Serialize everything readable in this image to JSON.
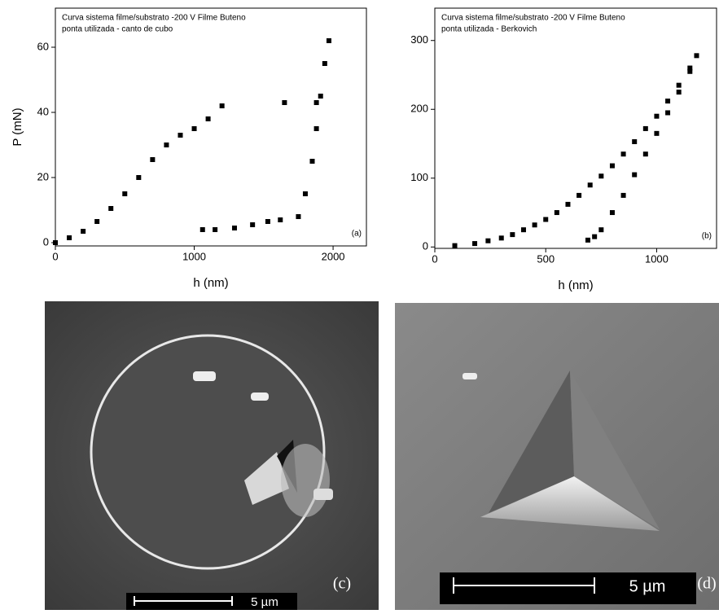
{
  "chart_data": [
    {
      "type": "scatter",
      "title": "Curva sistema filme/substrato -200 V Filme Buteno",
      "subtitle": "ponta utilizada - canto de cubo",
      "annotation": "(a)",
      "x_label": "h (nm)",
      "y_label": "P (mN)",
      "xlim": [
        0,
        2240
      ],
      "ylim": [
        -1,
        72
      ],
      "xticks": [
        0,
        1000,
        2000
      ],
      "yticks": [
        0,
        20,
        40,
        60
      ],
      "series": [
        {
          "color": "#000000",
          "x": [
            0,
            100,
            200,
            300,
            400,
            500,
            600,
            700,
            800,
            900,
            1000,
            1100,
            1200,
            1750,
            1800,
            1850,
            1880,
            1910,
            1940,
            1970,
            1060,
            1150,
            1290,
            1420,
            1530,
            1620,
            1650,
            1880
          ],
          "values": [
            0,
            1.5,
            3.5,
            6.5,
            10.5,
            15,
            20,
            25.5,
            30,
            33,
            35,
            38,
            42,
            8,
            15,
            25,
            35,
            45,
            55,
            62,
            4,
            4,
            4.5,
            5.5,
            6.5,
            7,
            43,
            43
          ]
        }
      ]
    },
    {
      "type": "scatter",
      "title": "Curva sistema filme/substrato -200 V Filme Buteno",
      "subtitle": "ponta utilizada - Berkovich",
      "annotation": "(b)",
      "x_label": "h (nm)",
      "xlim": [
        0,
        1270
      ],
      "ylim": [
        -2,
        347
      ],
      "xticks": [
        0,
        500,
        1000
      ],
      "yticks": [
        0,
        100,
        200,
        300
      ],
      "series": [
        {
          "color": "#000000",
          "x": [
            90,
            180,
            240,
            300,
            350,
            400,
            450,
            500,
            550,
            600,
            650,
            700,
            750,
            800,
            850,
            900,
            950,
            1000,
            1050,
            1100,
            1150,
            1180,
            1150,
            1100,
            1050,
            1000,
            950,
            900,
            850,
            800,
            750,
            720,
            690
          ],
          "values": [
            2,
            5,
            9,
            13,
            18,
            25,
            32,
            40,
            50,
            62,
            75,
            90,
            103,
            118,
            135,
            153,
            172,
            190,
            212,
            235,
            260,
            278,
            255,
            225,
            195,
            165,
            135,
            105,
            75,
            50,
            25,
            15,
            10
          ]
        }
      ]
    }
  ],
  "panels": [
    {
      "label": "(c)",
      "scale_bar": "5 µm"
    },
    {
      "label": "(d)",
      "scale_bar": "5 µm"
    }
  ]
}
